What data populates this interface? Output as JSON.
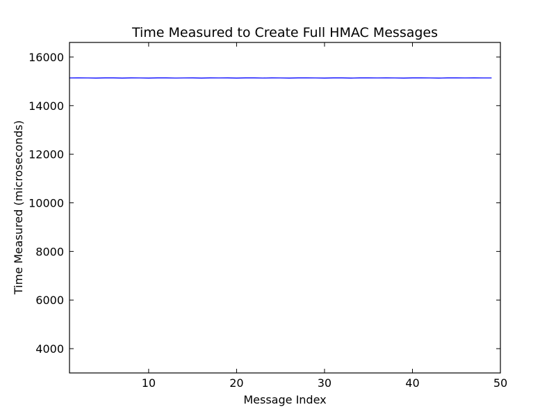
{
  "chart_data": {
    "type": "line",
    "title": "Time Measured to Create Full HMAC Messages",
    "xlabel": "Message Index",
    "ylabel": "Time Measured (microseconds)",
    "xlim": [
      1,
      50
    ],
    "ylim": [
      3000,
      16600
    ],
    "xticks": [
      10,
      20,
      30,
      40,
      50
    ],
    "yticks": [
      4000,
      6000,
      8000,
      10000,
      12000,
      14000,
      16000
    ],
    "grid": false,
    "series": [
      {
        "color": "#0000ff",
        "x": [
          1,
          2,
          3,
          4,
          5,
          6,
          7,
          8,
          9,
          10,
          11,
          12,
          13,
          14,
          15,
          16,
          17,
          18,
          19,
          20,
          21,
          22,
          23,
          24,
          25,
          26,
          27,
          28,
          29,
          30,
          31,
          32,
          33,
          34,
          35,
          36,
          37,
          38,
          39,
          40,
          41,
          42,
          43,
          44,
          45,
          46,
          47,
          48,
          49
        ],
        "y": [
          15140,
          15141,
          15140,
          15135,
          15142,
          15141,
          15134,
          15142,
          15140,
          15135,
          15141,
          15141,
          15136,
          15140,
          15141,
          15135,
          15141,
          15140,
          15141,
          15135,
          15141,
          15141,
          15136,
          15141,
          15140,
          15135,
          15141,
          15141,
          15140,
          15135,
          15141,
          15142,
          15135,
          15141,
          15141,
          15140,
          15141,
          15140,
          15135,
          15141,
          15141,
          15140,
          15134,
          15141,
          15141,
          15140,
          15141,
          15140,
          15140
        ]
      }
    ]
  }
}
